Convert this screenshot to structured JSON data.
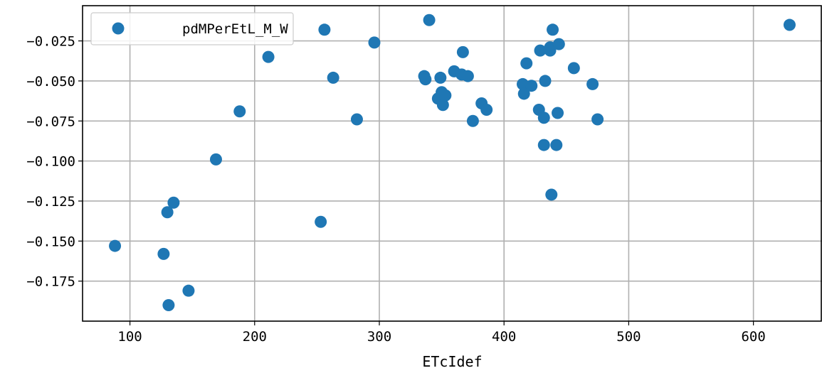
{
  "chart_data": {
    "type": "scatter",
    "title": "",
    "xlabel": "ETcIdef",
    "ylabel": "",
    "xlim": [
      62,
      655
    ],
    "ylim": [
      -0.2,
      -0.003
    ],
    "xticks": [
      100,
      200,
      300,
      400,
      500,
      600
    ],
    "xtick_labels": [
      "100",
      "200",
      "300",
      "400",
      "500",
      "600"
    ],
    "yticks": [
      -0.025,
      -0.05,
      -0.075,
      -0.1,
      -0.125,
      -0.15,
      -0.175
    ],
    "ytick_labels": [
      "−0.025",
      "−0.050",
      "−0.075",
      "−0.100",
      "−0.125",
      "−0.150",
      "−0.175"
    ],
    "grid": true,
    "legend": {
      "position": "top-left"
    },
    "series": [
      {
        "name": "pdMPerEtL_M_W",
        "color": "#1f77b4",
        "points": [
          [
            88,
            -0.153
          ],
          [
            127,
            -0.158
          ],
          [
            130,
            -0.132
          ],
          [
            131,
            -0.19
          ],
          [
            135,
            -0.126
          ],
          [
            147,
            -0.181
          ],
          [
            169,
            -0.099
          ],
          [
            188,
            -0.069
          ],
          [
            211,
            -0.035
          ],
          [
            253,
            -0.138
          ],
          [
            256,
            -0.018
          ],
          [
            263,
            -0.048
          ],
          [
            282,
            -0.074
          ],
          [
            296,
            -0.026
          ],
          [
            336,
            -0.047
          ],
          [
            337,
            -0.049
          ],
          [
            340,
            -0.012
          ],
          [
            347,
            -0.061
          ],
          [
            349,
            -0.048
          ],
          [
            350,
            -0.057
          ],
          [
            351,
            -0.065
          ],
          [
            353,
            -0.059
          ],
          [
            360,
            -0.044
          ],
          [
            366,
            -0.046
          ],
          [
            367,
            -0.032
          ],
          [
            371,
            -0.047
          ],
          [
            375,
            -0.075
          ],
          [
            382,
            -0.064
          ],
          [
            386,
            -0.068
          ],
          [
            415,
            -0.052
          ],
          [
            416,
            -0.058
          ],
          [
            418,
            -0.039
          ],
          [
            422,
            -0.053
          ],
          [
            428,
            -0.068
          ],
          [
            429,
            -0.031
          ],
          [
            432,
            -0.073
          ],
          [
            432,
            -0.09
          ],
          [
            433,
            -0.05
          ],
          [
            437,
            -0.029
          ],
          [
            437,
            -0.031
          ],
          [
            438,
            -0.121
          ],
          [
            439,
            -0.018
          ],
          [
            442,
            -0.09
          ],
          [
            443,
            -0.07
          ],
          [
            444,
            -0.027
          ],
          [
            456,
            -0.042
          ],
          [
            471,
            -0.052
          ],
          [
            475,
            -0.074
          ],
          [
            629,
            -0.015
          ]
        ]
      }
    ]
  }
}
